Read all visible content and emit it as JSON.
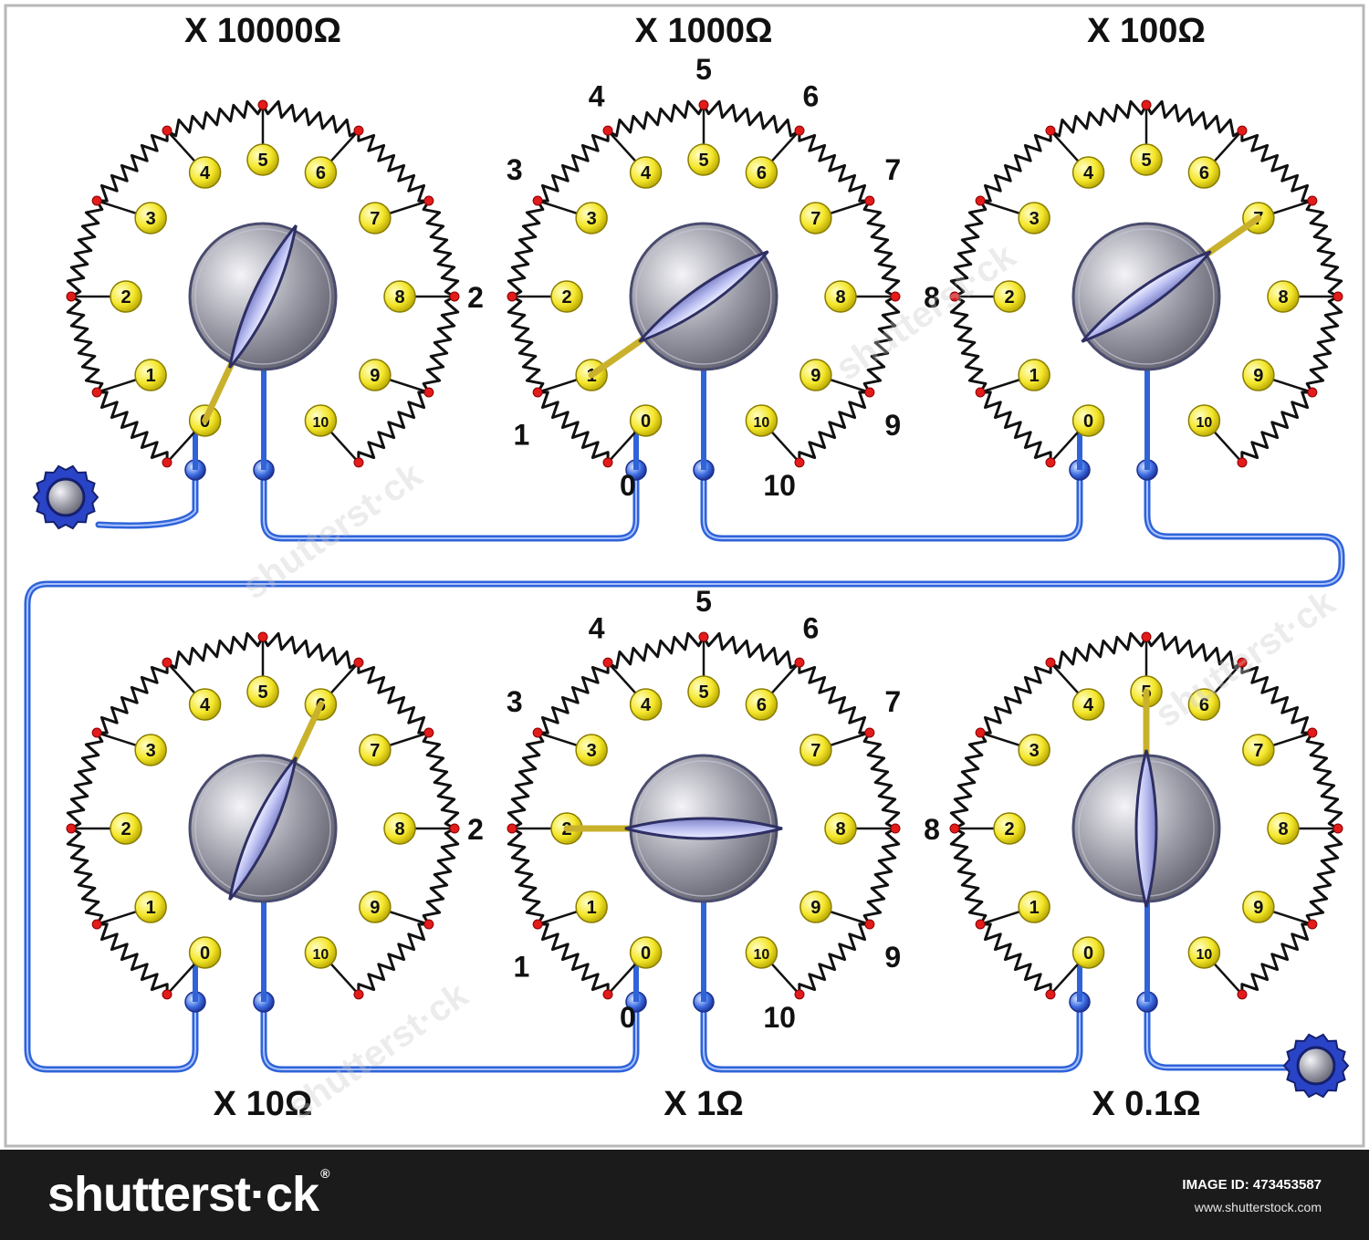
{
  "decade_box": {
    "colors": {
      "frame": "#b8b8b8",
      "resistor": "#111111",
      "node": "#e21b1b",
      "contact_fill": "#f4e62a",
      "contact_stroke": "#8a7d00",
      "wire": "#2f63d8",
      "wire_highlight": "#a9c2ff",
      "wiper": "#c9b12c",
      "knob_body": "#9aa0b4",
      "knob_bar": "#c9ccf2",
      "terminal": "#2a44c7"
    },
    "dials": [
      {
        "label": "X 10000Ω",
        "position": 0,
        "show_outer_numbers": false,
        "icon": "dial-selector-icon"
      },
      {
        "label": "X 1000Ω",
        "position": 1,
        "show_outer_numbers": true,
        "icon": "dial-selector-icon"
      },
      {
        "label": "X 100Ω",
        "position": 7,
        "show_outer_numbers": false,
        "icon": "dial-selector-icon"
      },
      {
        "label": "X 10Ω",
        "position": 6,
        "show_outer_numbers": false,
        "icon": "dial-selector-icon"
      },
      {
        "label": "X 1Ω",
        "position": 2,
        "show_outer_numbers": true,
        "icon": "dial-selector-icon"
      },
      {
        "label": "X 0.1Ω",
        "position": 5,
        "show_outer_numbers": false,
        "icon": "dial-selector-icon"
      }
    ],
    "contact_labels": [
      "0",
      "1",
      "2",
      "3",
      "4",
      "5",
      "6",
      "7",
      "8",
      "9",
      "10"
    ],
    "outer_labels": [
      "0",
      "1",
      "2",
      "3",
      "4",
      "5",
      "6",
      "7",
      "8",
      "9",
      "10"
    ],
    "terminals": [
      "terminal-input-icon",
      "terminal-output-icon"
    ]
  },
  "footer": {
    "brand": "shutterst·ck",
    "brand_mark": "®",
    "image_id": "IMAGE ID: 473453587",
    "site": "www.shutterstock.com"
  }
}
